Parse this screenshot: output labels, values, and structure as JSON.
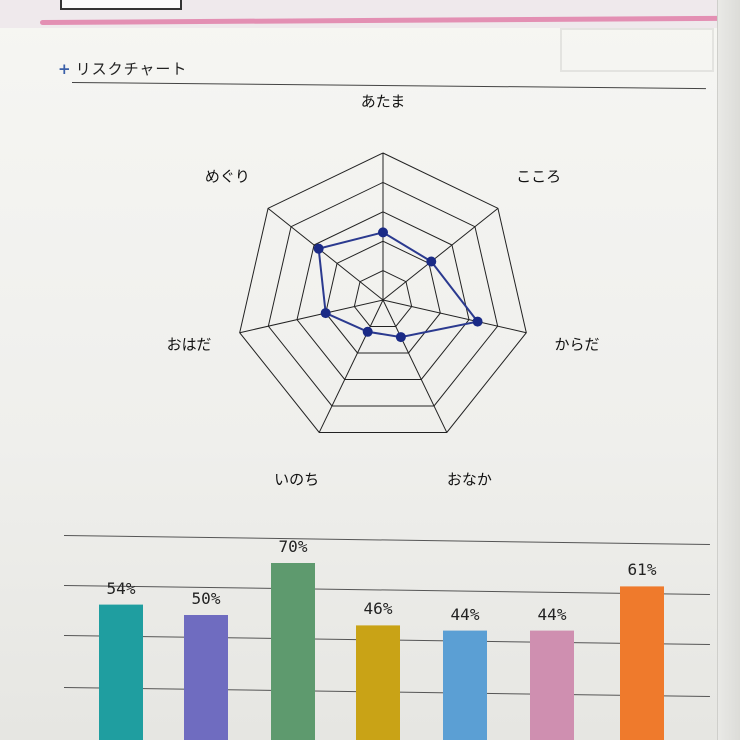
{
  "section": {
    "plus": "+",
    "title": "リスクチャート"
  },
  "chart_data": [
    {
      "type": "radar",
      "categories": [
        "あたま",
        "こころ",
        "からだ",
        "おなか",
        "いのち",
        "おはだ",
        "めぐり"
      ],
      "values": [
        2.3,
        2.1,
        3.3,
        1.4,
        1.2,
        2.0,
        2.8
      ],
      "rmax": 5,
      "rings": 5,
      "line_color": "#2b3a8f",
      "point_color": "#1a2a86"
    },
    {
      "type": "bar",
      "labels": [
        "54%",
        "50%",
        "70%",
        "46%",
        "44%",
        "44%",
        "61%"
      ],
      "values": [
        54,
        50,
        70,
        46,
        44,
        44,
        61
      ],
      "colors": [
        "#1f9ea0",
        "#6f6cc0",
        "#5e9a6e",
        "#c9a316",
        "#5b9fd4",
        "#cf8fb0",
        "#ef7a2c"
      ]
    }
  ]
}
